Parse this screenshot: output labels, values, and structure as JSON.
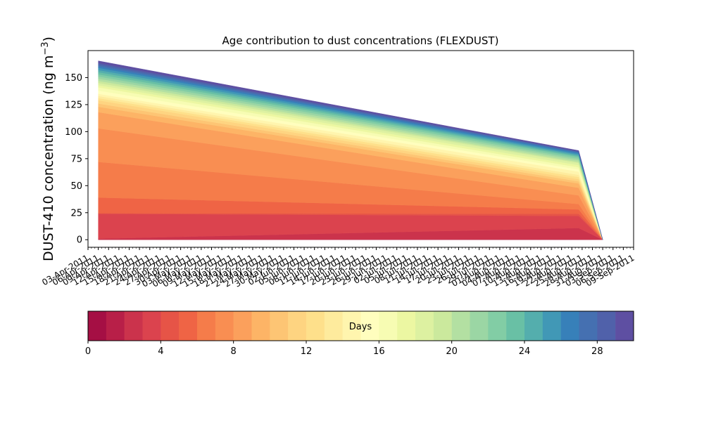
{
  "chart_data": {
    "type": "area",
    "title": "Age contribution to dust concentrations (FLEXDUST)",
    "ylabel": "DUST-410 concentration (ng m",
    "ylabel_superscript": "−3",
    "ylabel_suffix": ")",
    "ylim": [
      -7,
      175
    ],
    "yticks": [
      0,
      25,
      50,
      75,
      100,
      125,
      150
    ],
    "xlim": [
      "2011-04-03",
      "2011-09-09"
    ],
    "x": [
      "2011-04-06",
      "2011-08-24",
      "2011-08-31"
    ],
    "x_tick_labels": [
      "03-Apr-2011",
      "06-Apr-2011",
      "09-Apr-2011",
      "12-Apr-2011",
      "15-Apr-2011",
      "18-Apr-2011",
      "21-Apr-2011",
      "24-Apr-2011",
      "27-Apr-2011",
      "30-Apr-2011",
      "03-May-2011",
      "06-May-2011",
      "09-May-2011",
      "12-May-2011",
      "15-May-2011",
      "18-May-2011",
      "21-May-2011",
      "24-May-2011",
      "27-May-2011",
      "30-May-2011",
      "02-Jun-2011",
      "05-Jun-2011",
      "08-Jun-2011",
      "11-Jun-2011",
      "14-Jun-2011",
      "17-Jun-2011",
      "20-Jun-2011",
      "23-Jun-2011",
      "26-Jun-2011",
      "29-Jun-2011",
      "02-Jul-2011",
      "05-Jul-2011",
      "08-Jul-2011",
      "11-Jul-2011",
      "14-Jul-2011",
      "17-Jul-2011",
      "20-Jul-2011",
      "23-Jul-2011",
      "26-Jul-2011",
      "29-Jul-2011",
      "01-Aug-2011",
      "04-Aug-2011",
      "07-Aug-2011",
      "10-Aug-2011",
      "13-Aug-2011",
      "16-Aug-2011",
      "19-Aug-2011",
      "22-Aug-2011",
      "25-Aug-2011",
      "28-Aug-2011",
      "31-Aug-2011",
      "03-Sep-2011",
      "06-Sep-2011",
      "09-Sep-2011"
    ],
    "series": [
      {
        "label": "0",
        "values": [
          0,
          0,
          0
        ]
      },
      {
        "label": "1",
        "values": [
          0,
          0.1,
          0
        ]
      },
      {
        "label": "2",
        "values": [
          0.1,
          0.3,
          0
        ]
      },
      {
        "label": "3",
        "values": [
          1.0,
          10.8,
          0
        ]
      },
      {
        "label": "4",
        "values": [
          24.0,
          22.0,
          0
        ]
      },
      {
        "label": "5",
        "values": [
          24.5,
          24.0,
          0
        ]
      },
      {
        "label": "6",
        "values": [
          39.0,
          28.0,
          0
        ]
      },
      {
        "label": "7",
        "values": [
          72.0,
          33.0,
          0
        ]
      },
      {
        "label": "8",
        "values": [
          103.0,
          41.0,
          0
        ]
      },
      {
        "label": "9",
        "values": [
          118.0,
          48.0,
          0
        ]
      },
      {
        "label": "10",
        "values": [
          123.0,
          52.0,
          0
        ]
      },
      {
        "label": "11",
        "values": [
          126.0,
          54.0,
          0
        ]
      },
      {
        "label": "12",
        "values": [
          129.0,
          56.0,
          0
        ]
      },
      {
        "label": "13",
        "values": [
          131.0,
          58.0,
          0
        ]
      },
      {
        "label": "14",
        "values": [
          133.0,
          60.0,
          0
        ]
      },
      {
        "label": "15",
        "values": [
          135.0,
          63.0,
          0
        ]
      },
      {
        "label": "16",
        "values": [
          138.0,
          65.0,
          0
        ]
      },
      {
        "label": "17",
        "values": [
          141.0,
          67.0,
          0
        ]
      },
      {
        "label": "18",
        "values": [
          143.0,
          69.0,
          0
        ]
      },
      {
        "label": "19",
        "values": [
          145.0,
          71.0,
          0
        ]
      },
      {
        "label": "20",
        "values": [
          147.0,
          72.0,
          0
        ]
      },
      {
        "label": "21",
        "values": [
          149.0,
          73.5,
          0
        ]
      },
      {
        "label": "22",
        "values": [
          151.0,
          75.0,
          0
        ]
      },
      {
        "label": "23",
        "values": [
          153.0,
          76.5,
          0
        ]
      },
      {
        "label": "24",
        "values": [
          155.0,
          77.5,
          0
        ]
      },
      {
        "label": "25",
        "values": [
          157.0,
          78.5,
          0
        ]
      },
      {
        "label": "26",
        "values": [
          159.0,
          79.5,
          0
        ]
      },
      {
        "label": "27",
        "values": [
          160.5,
          80.5,
          0
        ]
      },
      {
        "label": "28",
        "values": [
          162.0,
          81.2,
          0
        ]
      },
      {
        "label": "29",
        "values": [
          163.5,
          81.8,
          0
        ]
      },
      {
        "label": "30",
        "values": [
          165.5,
          82.5,
          0
        ]
      }
    ],
    "colorbar": {
      "label": "Days",
      "ticks": [
        0,
        4,
        8,
        12,
        16,
        20,
        24,
        28
      ],
      "range": [
        0,
        30
      ],
      "colors": [
        "#a50f44",
        "#b81f48",
        "#cb334c",
        "#db434e",
        "#e65447",
        "#ef6445",
        "#f57c4a",
        "#f98e52",
        "#fba05c",
        "#fdb466",
        "#fdc574",
        "#fed481",
        "#fee08b",
        "#feeb9d",
        "#fff5ae",
        "#fffebe",
        "#f7fcb3",
        "#ecf7a2",
        "#ddf1a1",
        "#cbe99d",
        "#b3e0a2",
        "#9bd6a4",
        "#82cda5",
        "#69c0a5",
        "#54aead",
        "#4198b6",
        "#3780b9",
        "#4570b1",
        "#5061aa",
        "#5e4fa2"
      ]
    },
    "grid": false,
    "legend": "colorbar-bottom"
  }
}
